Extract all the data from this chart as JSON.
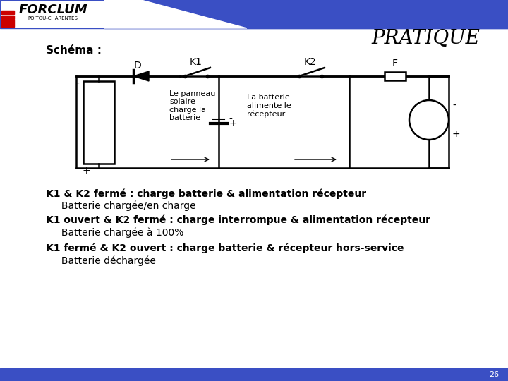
{
  "title": "PRATIQUE",
  "schema_label": "Schéma :",
  "bg_color": "#ffffff",
  "header_blue": "#3a4fc4",
  "text_color": "#000000",
  "logo_text": "FORCLUM",
  "logo_sub": "POITOU-CHARENTES",
  "bullet_lines": [
    "K1 & K2 fermé : charge batterie & alimentation récepteur",
    "     Batterie chargée/en charge",
    "K1 ouvert & K2 fermé : charge interrompue & alimentation récepteur",
    "     Batterie chargée à 100%",
    "K1 fermé & K2 ouvert : charge batterie & récepteur hors-service",
    "     Batterie déchargée"
  ],
  "page_number": "26",
  "component_labels": {
    "D": "D",
    "K1": "K1",
    "K2": "K2",
    "F": "F"
  },
  "annotation_solar": "Le panneau\nsolaire\ncharge la\nbatterie",
  "annotation_battery": "La batterie\nalimente le\nrécepteur"
}
